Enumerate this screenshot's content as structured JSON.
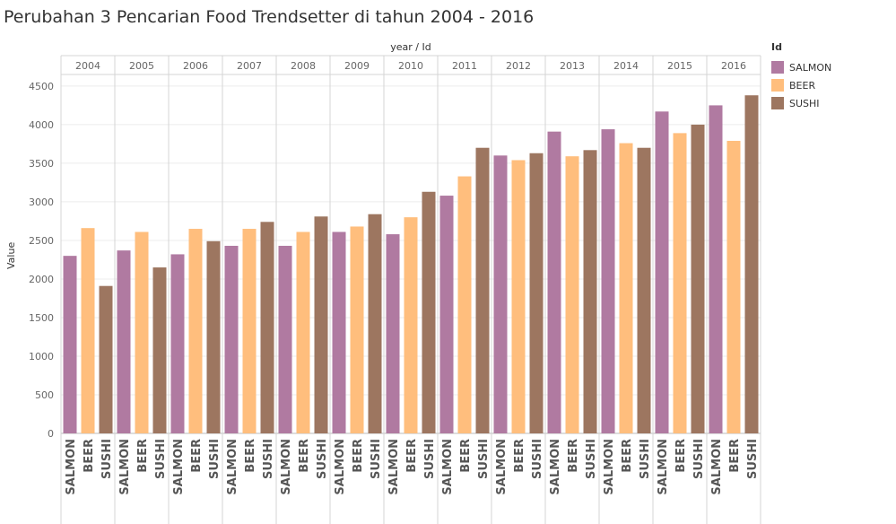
{
  "chart_data": {
    "type": "bar",
    "title": "Perubahan 3 Pencarian Food Trendsetter di tahun 2004 - 2016",
    "column_header": "year / Id",
    "ylabel": "Value",
    "ylim": [
      0,
      4650
    ],
    "yticks": [
      0,
      500,
      1000,
      1500,
      2000,
      2500,
      3000,
      3500,
      4000,
      4500
    ],
    "grid": true,
    "legend_position": "right",
    "legend_title": "Id",
    "categories": [
      "2004",
      "2005",
      "2006",
      "2007",
      "2008",
      "2009",
      "2010",
      "2011",
      "2012",
      "2013",
      "2014",
      "2015",
      "2016"
    ],
    "series": [
      {
        "name": "SALMON",
        "color": "#b07aa1",
        "values": [
          2300,
          2370,
          2320,
          2430,
          2430,
          2610,
          2580,
          3080,
          3600,
          3910,
          3940,
          4170,
          4250
        ]
      },
      {
        "name": "BEER",
        "color": "#ffbe7d",
        "values": [
          2660,
          2610,
          2650,
          2650,
          2610,
          2680,
          2800,
          3330,
          3540,
          3590,
          3760,
          3890,
          3790
        ]
      },
      {
        "name": "SUSHI",
        "color": "#9d7660",
        "values": [
          1910,
          2150,
          2490,
          2740,
          2810,
          2840,
          3130,
          3700,
          3630,
          3670,
          3700,
          4000,
          4380
        ]
      }
    ]
  }
}
